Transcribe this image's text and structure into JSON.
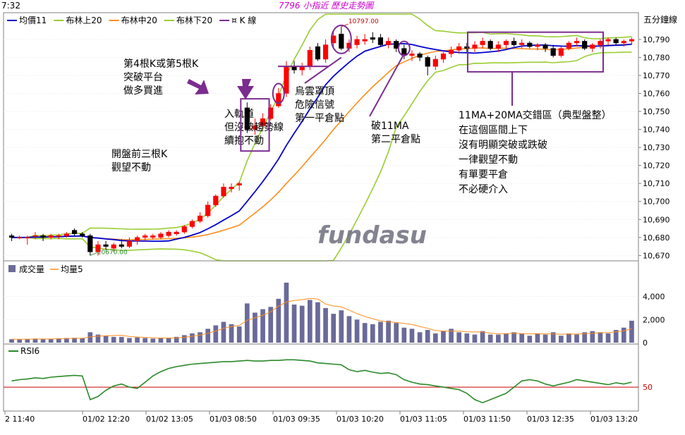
{
  "header": {
    "time": "7:32",
    "title": "7796 小指近  歷史走勢圖",
    "unit": "五分鐘線"
  },
  "colors": {
    "up": "#ff0000",
    "down": "#000000",
    "ma11": "#0000cc",
    "boll_band": "#9acd32",
    "boll_mid": "#ff8c1a",
    "annotation": "#7b2c8f",
    "volume": "#6a6a9a",
    "vol_ma": "#ff8c1a",
    "rsi": "#2a8a2a",
    "ref_line": "#cc0000",
    "title": "#cc00cc"
  },
  "legends": {
    "price": [
      {
        "label": "均價11",
        "color_key": "ma11"
      },
      {
        "label": "布林上20",
        "color_key": "boll_band"
      },
      {
        "label": "布林中20",
        "color_key": "boll_mid"
      },
      {
        "label": "布林下20",
        "color_key": "boll_band"
      },
      {
        "label": "¤ K 線",
        "color_key": "annotation"
      }
    ],
    "volume": [
      {
        "label": "成交量",
        "color_key": "volume"
      },
      {
        "label": "均量5",
        "color_key": "vol_ma"
      }
    ],
    "rsi": [
      {
        "label": "RSI6",
        "color_key": "rsi"
      }
    ]
  },
  "watermark": "fundasu",
  "price_marks": {
    "high": "10797.00",
    "low": "10670.00"
  },
  "annotations": [
    {
      "lines": [
        "第4根K或第5根K",
        "突破平台",
        "做多買進"
      ]
    },
    {
      "lines": [
        "入軌道",
        "但沒破趨勢線",
        "續抱不動"
      ]
    },
    {
      "lines": [
        "烏雲罩頂",
        "危險信號",
        "第一平倉點"
      ]
    },
    {
      "lines": [
        "破11MA",
        "第二平倉點"
      ]
    },
    {
      "lines": [
        "開盤前三根K",
        "觀望不動"
      ]
    },
    {
      "lines": [
        "11MA+20MA交錯區（典型盤整）",
        "在這個區間上下",
        "沒有明顯突破或跌破",
        "一律觀望不動",
        "有單要平倉",
        "不必硬介入"
      ]
    }
  ],
  "x_labels": [
    "2 11:40",
    "01/02 12:20",
    "01/02 13:05",
    "01/03 08:50",
    "01/03 09:35",
    "01/03 10:20",
    "01/03 11:05",
    "01/03 11:50",
    "01/03 12:35",
    "01/03 13:20"
  ],
  "chart_data": [
    {
      "type": "candlestick",
      "y_ticks": [
        10670,
        10680,
        10690,
        10700,
        10710,
        10720,
        10730,
        10740,
        10750,
        10760,
        10770,
        10780,
        10790
      ],
      "ylim": [
        10667,
        10797
      ],
      "candles": [
        {
          "o": 10681,
          "h": 10682,
          "l": 10678,
          "c": 10680
        },
        {
          "o": 10680,
          "h": 10681,
          "l": 10679,
          "c": 10680
        },
        {
          "o": 10680,
          "h": 10681,
          "l": 10676,
          "c": 10680
        },
        {
          "o": 10681,
          "h": 10683,
          "l": 10679,
          "c": 10681
        },
        {
          "o": 10681,
          "h": 10682,
          "l": 10678,
          "c": 10680
        },
        {
          "o": 10680,
          "h": 10682,
          "l": 10679,
          "c": 10681
        },
        {
          "o": 10681,
          "h": 10682,
          "l": 10679,
          "c": 10681
        },
        {
          "o": 10681,
          "h": 10683,
          "l": 10680,
          "c": 10682
        },
        {
          "o": 10684,
          "h": 10685,
          "l": 10681,
          "c": 10682
        },
        {
          "o": 10682,
          "h": 10683,
          "l": 10680,
          "c": 10681
        },
        {
          "o": 10681,
          "h": 10682,
          "l": 10670,
          "c": 10672
        },
        {
          "o": 10672,
          "h": 10678,
          "l": 10670,
          "c": 10676
        },
        {
          "o": 10676,
          "h": 10678,
          "l": 10673,
          "c": 10675
        },
        {
          "o": 10674,
          "h": 10677,
          "l": 10672,
          "c": 10676
        },
        {
          "o": 10676,
          "h": 10679,
          "l": 10674,
          "c": 10675
        },
        {
          "o": 10675,
          "h": 10680,
          "l": 10674,
          "c": 10678
        },
        {
          "o": 10678,
          "h": 10681,
          "l": 10676,
          "c": 10680
        },
        {
          "o": 10680,
          "h": 10682,
          "l": 10678,
          "c": 10681
        },
        {
          "o": 10680,
          "h": 10682,
          "l": 10679,
          "c": 10681
        },
        {
          "o": 10680,
          "h": 10683,
          "l": 10679,
          "c": 10682
        },
        {
          "o": 10681,
          "h": 10684,
          "l": 10680,
          "c": 10683
        },
        {
          "o": 10682,
          "h": 10684,
          "l": 10681,
          "c": 10683
        },
        {
          "o": 10683,
          "h": 10687,
          "l": 10682,
          "c": 10686
        },
        {
          "o": 10686,
          "h": 10690,
          "l": 10685,
          "c": 10689
        },
        {
          "o": 10689,
          "h": 10694,
          "l": 10688,
          "c": 10692
        },
        {
          "o": 10692,
          "h": 10700,
          "l": 10691,
          "c": 10698
        },
        {
          "o": 10698,
          "h": 10704,
          "l": 10697,
          "c": 10703
        },
        {
          "o": 10703,
          "h": 10710,
          "l": 10702,
          "c": 10708
        },
        {
          "o": 10707,
          "h": 10710,
          "l": 10705,
          "c": 10708
        },
        {
          "o": 10709,
          "h": 10711,
          "l": 10706,
          "c": 10710
        },
        {
          "o": 10752,
          "h": 10755,
          "l": 10738,
          "c": 10740
        },
        {
          "o": 10740,
          "h": 10746,
          "l": 10737,
          "c": 10742
        },
        {
          "o": 10742,
          "h": 10749,
          "l": 10740,
          "c": 10746
        },
        {
          "o": 10746,
          "h": 10754,
          "l": 10745,
          "c": 10752
        },
        {
          "o": 10753,
          "h": 10763,
          "l": 10752,
          "c": 10760
        },
        {
          "o": 10760,
          "h": 10778,
          "l": 10758,
          "c": 10775
        },
        {
          "o": 10775,
          "h": 10778,
          "l": 10771,
          "c": 10773
        },
        {
          "o": 10773,
          "h": 10777,
          "l": 10770,
          "c": 10775
        },
        {
          "o": 10775,
          "h": 10786,
          "l": 10773,
          "c": 10784
        },
        {
          "o": 10786,
          "h": 10788,
          "l": 10778,
          "c": 10779
        },
        {
          "o": 10779,
          "h": 10790,
          "l": 10777,
          "c": 10787
        },
        {
          "o": 10788,
          "h": 10795,
          "l": 10785,
          "c": 10792
        },
        {
          "o": 10793,
          "h": 10797,
          "l": 10784,
          "c": 10785
        },
        {
          "o": 10785,
          "h": 10790,
          "l": 10783,
          "c": 10788
        },
        {
          "o": 10787,
          "h": 10792,
          "l": 10785,
          "c": 10790
        },
        {
          "o": 10789,
          "h": 10793,
          "l": 10787,
          "c": 10790
        },
        {
          "o": 10791,
          "h": 10794,
          "l": 10788,
          "c": 10790
        },
        {
          "o": 10791,
          "h": 10793,
          "l": 10786,
          "c": 10787
        },
        {
          "o": 10787,
          "h": 10791,
          "l": 10785,
          "c": 10789
        },
        {
          "o": 10789,
          "h": 10790,
          "l": 10783,
          "c": 10785
        },
        {
          "o": 10785,
          "h": 10787,
          "l": 10779,
          "c": 10781
        },
        {
          "o": 10781,
          "h": 10784,
          "l": 10778,
          "c": 10782
        },
        {
          "o": 10782,
          "h": 10783,
          "l": 10778,
          "c": 10780
        },
        {
          "o": 10780,
          "h": 10781,
          "l": 10770,
          "c": 10775
        },
        {
          "o": 10775,
          "h": 10781,
          "l": 10773,
          "c": 10779
        },
        {
          "o": 10779,
          "h": 10783,
          "l": 10777,
          "c": 10782
        },
        {
          "o": 10782,
          "h": 10786,
          "l": 10780,
          "c": 10784
        },
        {
          "o": 10784,
          "h": 10788,
          "l": 10782,
          "c": 10786
        },
        {
          "o": 10786,
          "h": 10788,
          "l": 10783,
          "c": 10785
        },
        {
          "o": 10785,
          "h": 10789,
          "l": 10783,
          "c": 10787
        },
        {
          "o": 10787,
          "h": 10791,
          "l": 10785,
          "c": 10789
        },
        {
          "o": 10789,
          "h": 10790,
          "l": 10784,
          "c": 10785
        },
        {
          "o": 10785,
          "h": 10789,
          "l": 10783,
          "c": 10787
        },
        {
          "o": 10787,
          "h": 10790,
          "l": 10785,
          "c": 10789
        },
        {
          "o": 10789,
          "h": 10791,
          "l": 10786,
          "c": 10787
        },
        {
          "o": 10787,
          "h": 10790,
          "l": 10785,
          "c": 10788
        },
        {
          "o": 10788,
          "h": 10789,
          "l": 10785,
          "c": 10786
        },
        {
          "o": 10786,
          "h": 10788,
          "l": 10784,
          "c": 10787
        },
        {
          "o": 10787,
          "h": 10788,
          "l": 10783,
          "c": 10785
        },
        {
          "o": 10785,
          "h": 10787,
          "l": 10780,
          "c": 10781
        },
        {
          "o": 10781,
          "h": 10786,
          "l": 10780,
          "c": 10785
        },
        {
          "o": 10785,
          "h": 10789,
          "l": 10784,
          "c": 10788
        },
        {
          "o": 10788,
          "h": 10791,
          "l": 10786,
          "c": 10789
        },
        {
          "o": 10789,
          "h": 10790,
          "l": 10784,
          "c": 10785
        },
        {
          "o": 10785,
          "h": 10788,
          "l": 10783,
          "c": 10787
        },
        {
          "o": 10787,
          "h": 10790,
          "l": 10785,
          "c": 10789
        },
        {
          "o": 10789,
          "h": 10791,
          "l": 10787,
          "c": 10790
        },
        {
          "o": 10790,
          "h": 10791,
          "l": 10787,
          "c": 10788
        },
        {
          "o": 10788,
          "h": 10790,
          "l": 10786,
          "c": 10789
        },
        {
          "o": 10789,
          "h": 10791,
          "l": 10787,
          "c": 10790
        }
      ]
    },
    {
      "type": "bar",
      "y_ticks": [
        0,
        2000,
        4000
      ],
      "y_tick_labels": [
        "0",
        "2,000",
        "4,000"
      ],
      "ylim": [
        0,
        5500
      ],
      "values": [
        300,
        280,
        320,
        350,
        300,
        320,
        380,
        400,
        420,
        380,
        900,
        700,
        600,
        500,
        500,
        400,
        450,
        400,
        350,
        380,
        420,
        500,
        650,
        800,
        900,
        1200,
        1500,
        1800,
        1600,
        1400,
        3400,
        2600,
        2900,
        3100,
        3800,
        5200,
        3300,
        3200,
        3700,
        3500,
        3000,
        2500,
        2800,
        2300,
        2000,
        1700,
        1600,
        1800,
        1900,
        1700,
        1300,
        1200,
        900,
        1100,
        800,
        1000,
        1200,
        900,
        800,
        700,
        1000,
        700,
        700,
        800,
        900,
        800,
        600,
        800,
        700,
        900,
        600,
        800,
        700,
        900,
        1000,
        900,
        800,
        1100,
        1300,
        1900
      ]
    },
    {
      "type": "line",
      "y_ticks": [
        50
      ],
      "y_tick_labels": [
        "50"
      ],
      "ylim": [
        15,
        100
      ],
      "values": [
        60,
        62,
        63,
        65,
        64,
        66,
        67,
        68,
        69,
        68,
        30,
        35,
        45,
        52,
        55,
        50,
        48,
        58,
        68,
        75,
        80,
        83,
        85,
        87,
        88,
        89,
        90,
        91,
        91,
        92,
        93,
        92,
        92,
        93,
        93,
        94,
        94,
        93,
        92,
        89,
        88,
        87,
        86,
        78,
        75,
        77,
        74,
        72,
        73,
        70,
        62,
        58,
        55,
        54,
        52,
        50,
        48,
        46,
        40,
        30,
        25,
        30,
        35,
        40,
        50,
        60,
        62,
        60,
        55,
        52,
        55,
        58,
        62,
        60,
        58,
        56,
        54,
        57,
        55,
        58
      ]
    }
  ]
}
